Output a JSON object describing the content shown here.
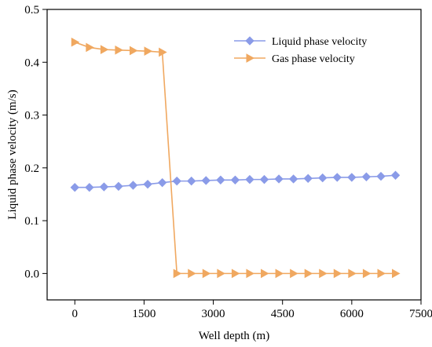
{
  "chart_data": {
    "type": "line",
    "xlabel": "Well depth (m)",
    "ylabel": "Liquid phase velocity (m/s)",
    "xlim": [
      -600,
      7500
    ],
    "ylim": [
      -0.05,
      0.5
    ],
    "xticks": [
      0,
      1500,
      3000,
      4500,
      6000,
      7500
    ],
    "yticks": [
      0.0,
      0.1,
      0.2,
      0.3,
      0.4,
      0.5
    ],
    "xtick_labels": [
      "0",
      "1500",
      "3000",
      "4500",
      "6000",
      "7500"
    ],
    "ytick_labels": [
      "0.0",
      "0.1",
      "0.2",
      "0.3",
      "0.4",
      "0.5"
    ],
    "grid": false,
    "legend_position": "top-right",
    "series": [
      {
        "name": "Liquid phase velocity",
        "color": "#8A9BE8",
        "marker": "diamond",
        "x": [
          0,
          316,
          632,
          947,
          1263,
          1579,
          1895,
          2211,
          2526,
          2842,
          3158,
          3474,
          3789,
          4105,
          4421,
          4737,
          5053,
          5368,
          5684,
          6000,
          6316,
          6632,
          6947
        ],
        "y": [
          0.163,
          0.163,
          0.164,
          0.165,
          0.167,
          0.169,
          0.172,
          0.175,
          0.175,
          0.176,
          0.177,
          0.177,
          0.178,
          0.178,
          0.179,
          0.179,
          0.18,
          0.181,
          0.182,
          0.182,
          0.183,
          0.184,
          0.186
        ]
      },
      {
        "name": "Gas phase velocity",
        "color": "#F0A860",
        "marker": "triangle-right",
        "x": [
          0,
          316,
          632,
          947,
          1263,
          1579,
          1895,
          2211,
          2526,
          2842,
          3158,
          3474,
          3789,
          4105,
          4421,
          4737,
          5053,
          5368,
          5684,
          6000,
          6316,
          6632,
          6947
        ],
        "y": [
          0.438,
          0.428,
          0.424,
          0.423,
          0.422,
          0.421,
          0.419,
          0.0,
          0.0,
          0.0,
          0.0,
          0.0,
          0.0,
          0.0,
          0.0,
          0.0,
          0.0,
          0.0,
          0.0,
          0.0,
          0.0,
          0.0,
          0.0
        ]
      }
    ]
  }
}
